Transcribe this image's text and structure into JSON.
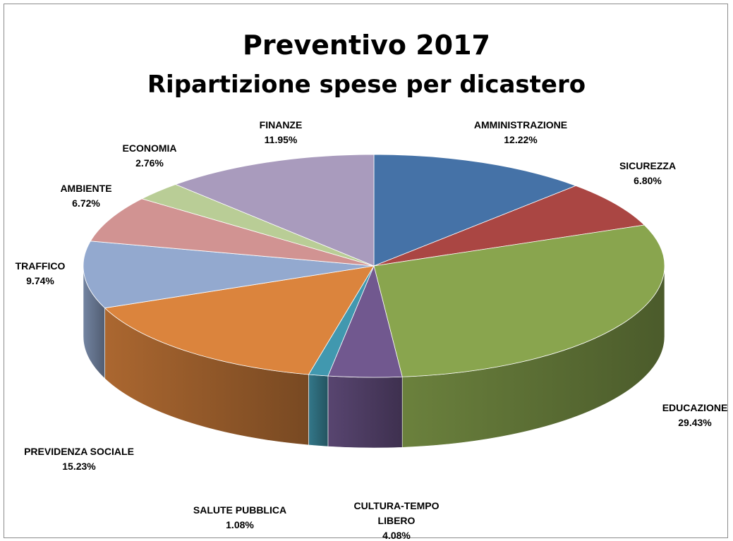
{
  "chart_data": {
    "type": "pie",
    "title": "Preventivo 2017",
    "subtitle": "Ripartizione spese per dicastero",
    "three_d": true,
    "legend": "none",
    "slices": [
      {
        "label": "AMMINISTRAZIONE",
        "lines": [
          "AMMINISTRAZIONE"
        ],
        "value": 12.22,
        "value_label": "12.22%",
        "color": "#4572a7"
      },
      {
        "label": "SICUREZZA",
        "lines": [
          "SICUREZZA"
        ],
        "value": 6.8,
        "value_label": "6.80%",
        "color": "#aa4643"
      },
      {
        "label": "EDUCAZIONE",
        "lines": [
          "EDUCAZIONE"
        ],
        "value": 29.43,
        "value_label": "29.43%",
        "color": "#89a54e"
      },
      {
        "label": "CULTURA-TEMPO LIBERO",
        "lines": [
          "CULTURA-TEMPO",
          "LIBERO"
        ],
        "value": 4.08,
        "value_label": "4.08%",
        "color": "#71588f"
      },
      {
        "label": "SALUTE PUBBLICA",
        "lines": [
          "SALUTE PUBBLICA"
        ],
        "value": 1.08,
        "value_label": "1.08%",
        "color": "#4198af"
      },
      {
        "label": "PREVIDENZA SOCIALE",
        "lines": [
          "PREVIDENZA SOCIALE"
        ],
        "value": 15.23,
        "value_label": "15.23%",
        "color": "#db843d"
      },
      {
        "label": "TRAFFICO",
        "lines": [
          "TRAFFICO"
        ],
        "value": 9.74,
        "value_label": "9.74%",
        "color": "#93a9cf"
      },
      {
        "label": "AMBIENTE",
        "lines": [
          "AMBIENTE"
        ],
        "value": 6.72,
        "value_label": "6.72%",
        "color": "#d19392"
      },
      {
        "label": "ECONOMIA",
        "lines": [
          "ECONOMIA"
        ],
        "value": 2.76,
        "value_label": "2.76%",
        "color": "#b9cd96"
      },
      {
        "label": "FINANZE",
        "lines": [
          "FINANZE"
        ],
        "value": 11.95,
        "value_label": "11.95%",
        "color": "#a99bbd"
      }
    ]
  }
}
